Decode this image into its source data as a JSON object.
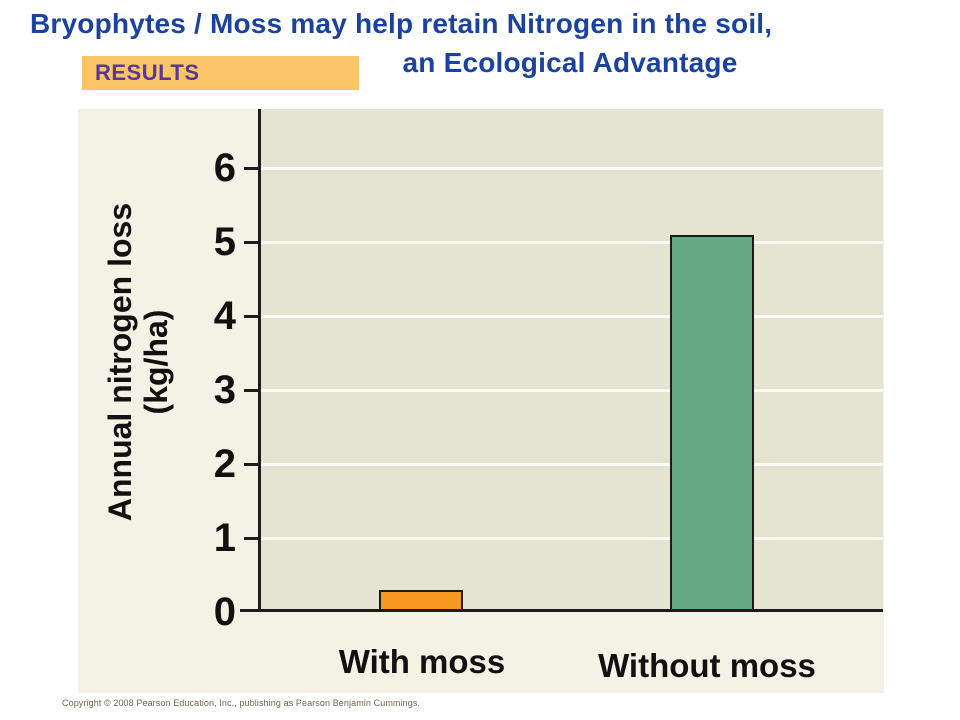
{
  "title": {
    "line1": "Bryophytes / Moss may help retain Nitrogen in the soil,",
    "line2": "an Ecological Advantage"
  },
  "results_label": "RESULTS",
  "chart_data": {
    "type": "bar",
    "categories": [
      "With moss",
      "Without moss"
    ],
    "values": [
      0.3,
      5.1
    ],
    "bar_colors": [
      "#F7991F",
      "#67A984"
    ],
    "title": "",
    "xlabel": "",
    "ylabel": "Annual nitrogen loss (kg/ha)",
    "ylabel_lines": [
      "Annual nitrogen loss",
      "(kg/ha)"
    ],
    "ylim": [
      0,
      6.8
    ],
    "yticks": [
      0,
      1,
      2,
      3,
      4,
      5,
      6
    ],
    "grid": true,
    "gridline_color": "#FCFCF7",
    "plot_background": "#E5E4D2",
    "legend": false
  },
  "colors": {
    "title_blue": "#1B429E",
    "results_bg": "#FBC567",
    "results_text": "#5B3794",
    "panel_bg": "#F4F1E5",
    "plot_bg": "#E5E4D2",
    "gridline": "#FCFCF7",
    "axis": "#1C1C1A"
  },
  "footer": {
    "copyright": "Copyright © 2008 Pearson Education, Inc., publishing as Pearson Benjamin Cummings."
  }
}
